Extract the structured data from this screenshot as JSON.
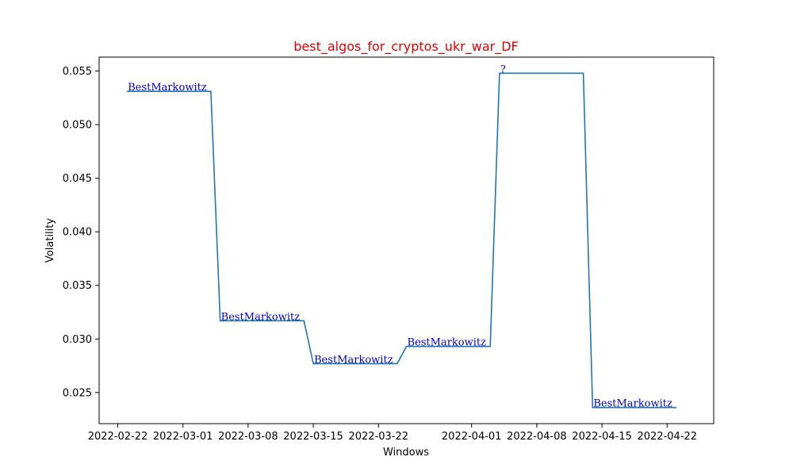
{
  "chart_data": {
    "type": "line",
    "title": "best_algos_for_cryptos_ukr_war_DF",
    "xlabel": "Windows",
    "ylabel": "Volatility",
    "x_ticks": [
      "2022-02-22",
      "2022-03-01",
      "2022-03-08",
      "2022-03-15",
      "2022-03-22",
      "2022-04-01",
      "2022-04-08",
      "2022-04-15",
      "2022-04-22"
    ],
    "x_range": [
      "2022-02-20",
      "2022-04-27"
    ],
    "y_ticks": [
      "0.025",
      "0.030",
      "0.035",
      "0.040",
      "0.045",
      "0.050",
      "0.055"
    ],
    "ylim": [
      0.0221,
      0.0563
    ],
    "grid": false,
    "colors": {
      "title": "#e00000",
      "line": "#1f77b4",
      "annotation": "#0000cc"
    },
    "series": [
      {
        "x": [
          "2022-02-23",
          "2022-03-04",
          "2022-03-05",
          "2022-03-14",
          "2022-03-15",
          "2022-03-24",
          "2022-03-25",
          "2022-04-03",
          "2022-04-04",
          "2022-04-13",
          "2022-04-14",
          "2022-04-23"
        ],
        "values": [
          0.0531,
          0.0531,
          0.0317,
          0.0317,
          0.0277,
          0.0277,
          0.0293,
          0.0293,
          0.0548,
          0.0548,
          0.0236,
          0.0236
        ]
      }
    ],
    "annotations": [
      {
        "text": "BestMarkowitz",
        "x": "2022-02-23",
        "y": 0.0531
      },
      {
        "text": "BestMarkowitz",
        "x": "2022-03-05",
        "y": 0.0317
      },
      {
        "text": "BestMarkowitz",
        "x": "2022-03-15",
        "y": 0.0277
      },
      {
        "text": "BestMarkowitz",
        "x": "2022-03-25",
        "y": 0.0293
      },
      {
        "text": "?",
        "x": "2022-04-04",
        "y": 0.0548
      },
      {
        "text": "BestMarkowitz",
        "x": "2022-04-14",
        "y": 0.0236
      }
    ]
  }
}
